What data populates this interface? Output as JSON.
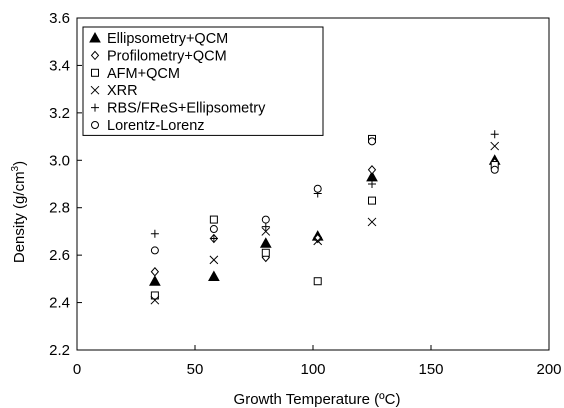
{
  "chart_data": {
    "type": "scatter",
    "xlabel": "Growth Temperature (ºC)",
    "ylabel_main": "Density (g/cm",
    "ylabel_sup": "3",
    "ylabel_end": ")",
    "xlim": [
      0,
      200
    ],
    "ylim": [
      2.2,
      3.6
    ],
    "x_ticks": [
      "0",
      "50",
      "100",
      "150",
      "200"
    ],
    "y_ticks": [
      "2.2",
      "2.4",
      "2.6",
      "2.8",
      "3.0",
      "3.2",
      "3.4",
      "3.6"
    ],
    "grid": false,
    "legend_position": "top-left",
    "series": [
      {
        "name": "Ellipsometry+QCM",
        "marker": "filled-triangle",
        "points": [
          [
            33,
            2.49
          ],
          [
            58,
            2.51
          ],
          [
            80,
            2.65
          ],
          [
            102,
            2.68
          ],
          [
            125,
            2.93
          ],
          [
            177,
            3.0
          ]
        ]
      },
      {
        "name": "Profilometry+QCM",
        "marker": "diamond",
        "points": [
          [
            33,
            2.53
          ],
          [
            58,
            2.67
          ],
          [
            80,
            2.59
          ],
          [
            102,
            2.67
          ],
          [
            125,
            2.96
          ],
          [
            177,
            2.99
          ]
        ]
      },
      {
        "name": "AFM+QCM",
        "marker": "square",
        "points": [
          [
            33,
            2.43
          ],
          [
            58,
            2.75
          ],
          [
            80,
            2.61
          ],
          [
            102,
            2.49
          ],
          [
            125,
            2.83
          ],
          [
            125,
            3.09
          ],
          [
            177,
            2.98
          ]
        ]
      },
      {
        "name": "XRR",
        "marker": "x",
        "points": [
          [
            33,
            2.41
          ],
          [
            58,
            2.58
          ],
          [
            80,
            2.7
          ],
          [
            102,
            2.66
          ],
          [
            125,
            2.74
          ],
          [
            177,
            3.06
          ]
        ]
      },
      {
        "name": "RBS/FReS+Ellipsometry",
        "marker": "plus",
        "points": [
          [
            33,
            2.69
          ],
          [
            58,
            2.67
          ],
          [
            80,
            2.72
          ],
          [
            102,
            2.86
          ],
          [
            125,
            2.9
          ],
          [
            177,
            3.11
          ]
        ]
      },
      {
        "name": "Lorentz-Lorenz",
        "marker": "circle",
        "points": [
          [
            33,
            2.62
          ],
          [
            58,
            2.71
          ],
          [
            80,
            2.75
          ],
          [
            102,
            2.88
          ],
          [
            125,
            3.08
          ],
          [
            177,
            2.96
          ]
        ]
      }
    ]
  }
}
